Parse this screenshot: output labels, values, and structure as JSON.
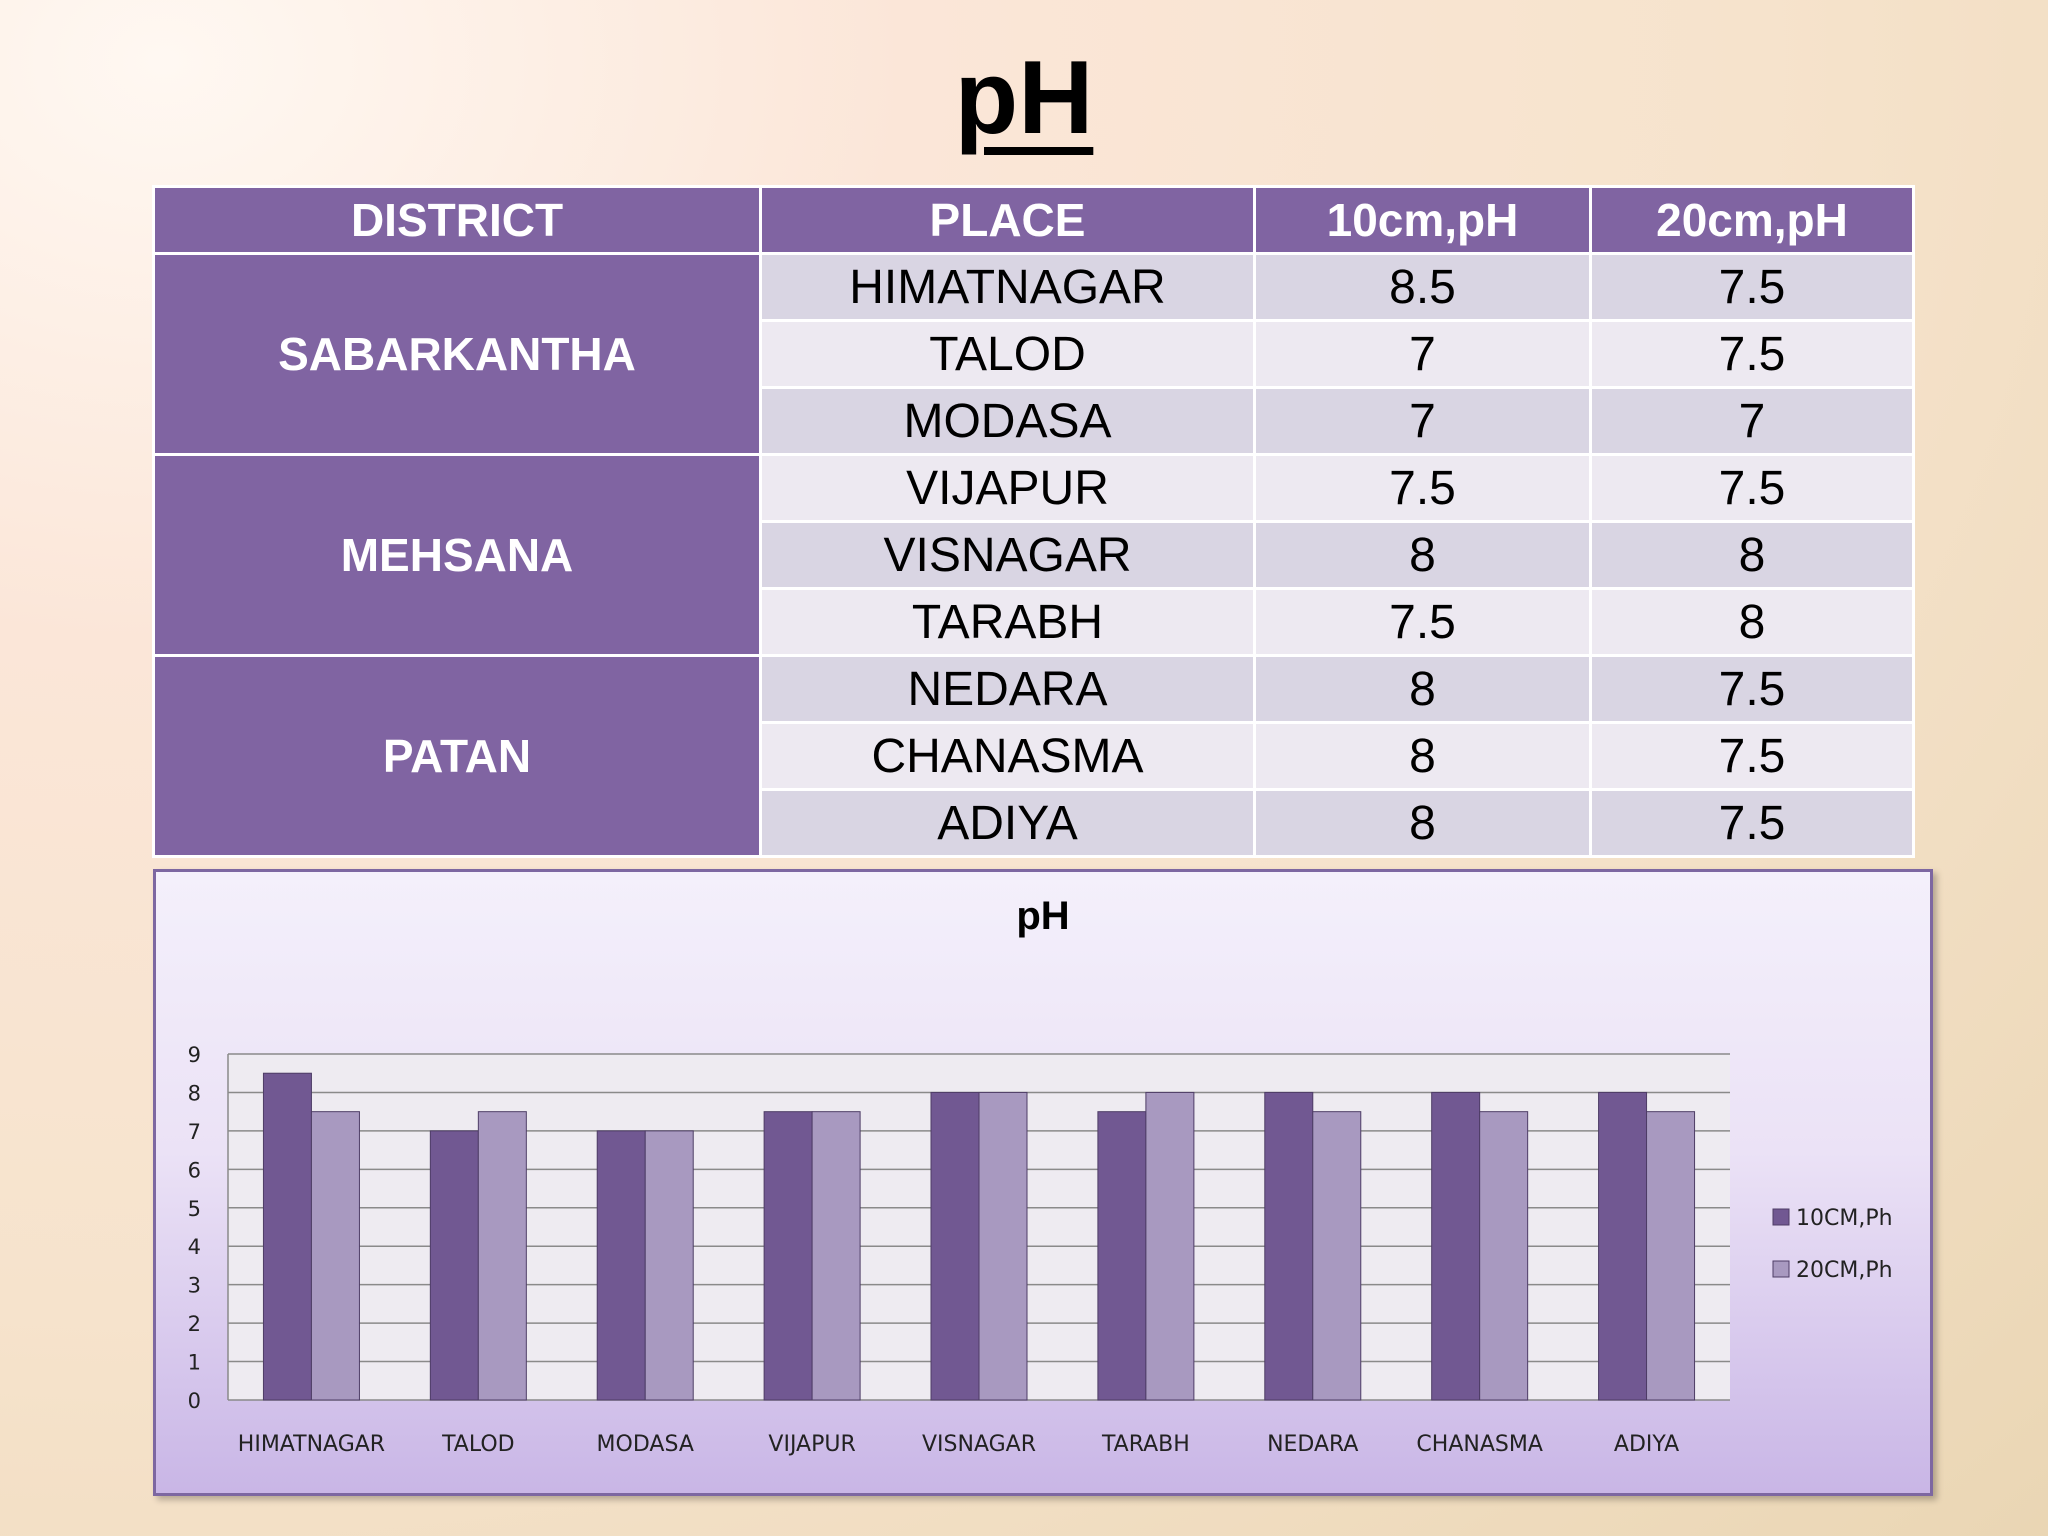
{
  "slide_title": "pH",
  "table": {
    "headers": [
      "DISTRICT",
      "PLACE",
      "10cm,pH",
      "20cm,pH"
    ],
    "groups": [
      {
        "district": "SABARKANTHA",
        "rows": [
          [
            "HIMATNAGAR",
            "8.5",
            "7.5"
          ],
          [
            "TALOD",
            "7",
            "7.5"
          ],
          [
            "MODASA",
            "7",
            "7"
          ]
        ]
      },
      {
        "district": "MEHSANA",
        "rows": [
          [
            "VIJAPUR",
            "7.5",
            "7.5"
          ],
          [
            "VISNAGAR",
            "8",
            "8"
          ],
          [
            "TARABH",
            "7.5",
            "8"
          ]
        ]
      },
      {
        "district": "PATAN",
        "rows": [
          [
            "NEDARA",
            "8",
            "7.5"
          ],
          [
            "CHANASMA",
            "8",
            "7.5"
          ],
          [
            "ADIYA",
            "8",
            "7.5"
          ]
        ]
      }
    ]
  },
  "chart_data": {
    "type": "bar",
    "title": "pH",
    "categories": [
      "HIMATNAGAR",
      "TALOD",
      "MODASA",
      "VIJAPUR",
      "VISNAGAR",
      "TARABH",
      "NEDARA",
      "CHANASMA",
      "ADIYA"
    ],
    "series": [
      {
        "name": "10CM,Ph",
        "values": [
          8.5,
          7,
          7,
          7.5,
          8,
          7.5,
          8,
          8,
          8
        ],
        "color": "#715892"
      },
      {
        "name": "20CM,Ph",
        "values": [
          7.5,
          7.5,
          7,
          7.5,
          8,
          8,
          7.5,
          7.5,
          7.5
        ],
        "color": "#a899c0"
      }
    ],
    "ylim": [
      0,
      9
    ],
    "yticks": [
      0,
      1,
      2,
      3,
      4,
      5,
      6,
      7,
      8,
      9
    ],
    "xlabel": "",
    "ylabel": "",
    "grid": true,
    "legend": "right"
  }
}
